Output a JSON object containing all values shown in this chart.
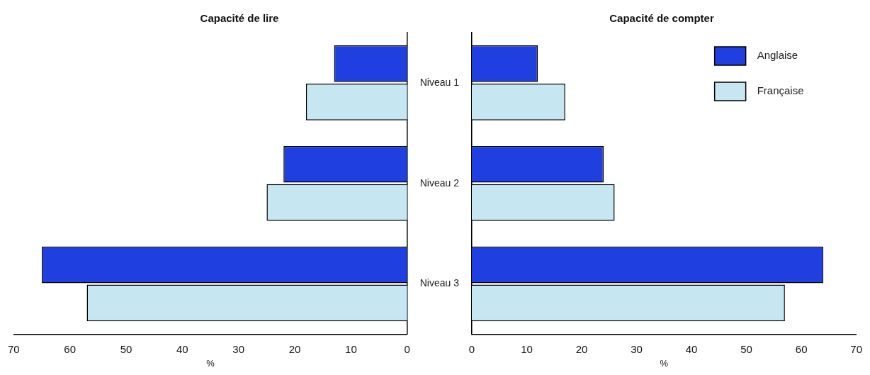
{
  "chart_data": [
    {
      "type": "bar",
      "orientation": "horizontal",
      "title": "Capacité de lire",
      "xlabel": "%",
      "categories": [
        "Niveau 1",
        "Niveau 2",
        "Niveau 3"
      ],
      "series": [
        {
          "color": "#1f3fe0",
          "values": [
            13,
            22,
            65
          ]
        },
        {
          "color": "#c6e6f2",
          "values": [
            18,
            25,
            57
          ]
        }
      ],
      "xlim": [
        70,
        0
      ],
      "xticks": [
        70,
        60,
        50,
        40,
        30,
        20,
        10,
        0
      ],
      "grid": false,
      "legend": false
    },
    {
      "type": "bar",
      "orientation": "horizontal",
      "title": "Capacité de compter",
      "xlabel": "%",
      "categories": [
        null,
        null,
        null
      ],
      "series": [
        {
          "name": "Anglaise",
          "color": "#1f3fe0",
          "values": [
            12,
            24,
            64
          ]
        },
        {
          "name": "Française",
          "color": "#c6e6f2",
          "values": [
            17,
            26,
            57
          ]
        }
      ],
      "xlim": [
        0,
        70
      ],
      "xticks": [
        0,
        10,
        20,
        30,
        40,
        50,
        60,
        70
      ],
      "grid": false,
      "legend": "top right",
      "tick_labels": "x"
    }
  ]
}
